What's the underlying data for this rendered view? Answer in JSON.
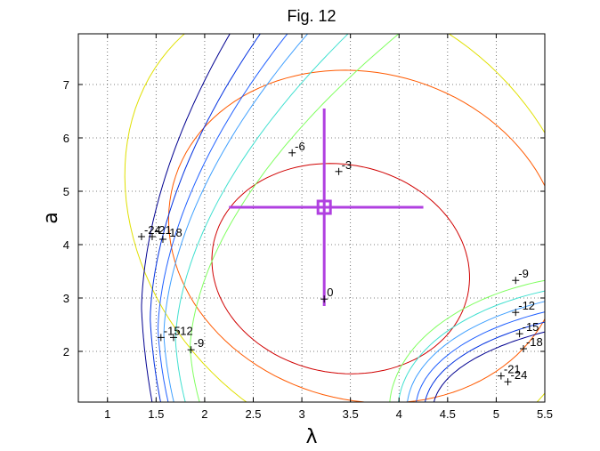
{
  "chart_data": {
    "type": "contour",
    "title": "Fig. 12",
    "xlabel": "λ",
    "ylabel": "a",
    "xlim": [
      0.7,
      5.5
    ],
    "ylim": [
      1.05,
      7.95
    ],
    "xticks": [
      "1",
      "1.5",
      "2",
      "2.5",
      "3",
      "3.5",
      "4",
      "4.5",
      "5",
      "5.5"
    ],
    "yticks": [
      "2",
      "3",
      "4",
      "5",
      "6",
      "7"
    ],
    "grid": true,
    "optimum": {
      "x": 3.23,
      "y": 4.7
    },
    "error_bars": {
      "x": [
        2.25,
        4.25
      ],
      "y": [
        2.85,
        6.55
      ]
    },
    "contours": [
      {
        "level": 0,
        "color": "#d00000",
        "center": [
          3.4,
          3.55
        ],
        "rx": 1.35,
        "ry": 2.05,
        "tilt": 0.35
      },
      {
        "level": -3,
        "color": "#ff5a00",
        "center": [
          3.65,
          4.15
        ],
        "rx": 2.05,
        "ry": 3.25,
        "tilt": 0.35
      },
      {
        "level": -6,
        "color": "#e0e000",
        "center": [
          3.55,
          4.4
        ],
        "rx": 2.35,
        "ry": 4.6,
        "tilt": 0.35
      },
      {
        "level": -9,
        "color": "#80ff60",
        "side": "left",
        "x_min": 1.85,
        "y_at_min": 2.05
      },
      {
        "level": -12,
        "color": "#40e0d0",
        "side": "left",
        "x_min": 1.7,
        "y_at_min": 2.2
      },
      {
        "level": -15,
        "color": "#40a0ff",
        "side": "left",
        "x_min": 1.58,
        "y_at_min": 2.3
      },
      {
        "level": -18,
        "color": "#2060ff",
        "side": "left",
        "x_min": 1.52,
        "y_at_min": 2.4
      },
      {
        "level": -21,
        "color": "#0030e0",
        "side": "left",
        "x_min": 1.44,
        "y_at_min": 2.6
      },
      {
        "level": -24,
        "color": "#000090",
        "side": "left",
        "x_min": 1.35,
        "y_at_min": 2.8
      }
    ],
    "labels": [
      {
        "text": "0",
        "x": 3.23,
        "y": 2.98
      },
      {
        "text": "-3",
        "x": 3.38,
        "y": 5.37
      },
      {
        "text": "-6",
        "x": 2.9,
        "y": 5.72
      },
      {
        "text": "-9",
        "x": 1.86,
        "y": 2.03
      },
      {
        "text": "-12",
        "x": 1.68,
        "y": 2.26
      },
      {
        "text": "-15",
        "x": 1.55,
        "y": 2.26
      },
      {
        "text": "-18",
        "x": 1.57,
        "y": 4.1
      },
      {
        "text": "-21",
        "x": 1.46,
        "y": 4.15
      },
      {
        "text": "-24",
        "x": 1.35,
        "y": 4.15
      },
      {
        "text": "-9",
        "x": 5.2,
        "y": 3.33
      },
      {
        "text": "-12",
        "x": 5.2,
        "y": 2.73
      },
      {
        "text": "-15",
        "x": 5.24,
        "y": 2.33
      },
      {
        "text": "-18",
        "x": 5.28,
        "y": 2.05
      },
      {
        "text": "-21",
        "x": 5.05,
        "y": 1.54
      },
      {
        "text": "-24",
        "x": 5.12,
        "y": 1.43
      }
    ]
  }
}
